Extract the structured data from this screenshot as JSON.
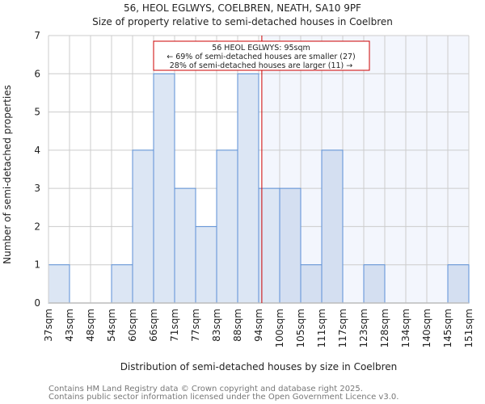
{
  "chart_data": {
    "type": "bar",
    "title": "56, HEOL EGLWYS, COELBREN, NEATH, SA10 9PF",
    "subtitle": "Size of property relative to semi-detached houses in Coelbren",
    "xlabel": "Distribution of semi-detached houses by size in Coelbren",
    "ylabel": "Number of semi-detached properties",
    "ylim": [
      0,
      7
    ],
    "yticks": [
      "0",
      "1",
      "2",
      "3",
      "4",
      "5",
      "6",
      "7"
    ],
    "bin_edges": [
      "37sqm",
      "43sqm",
      "48sqm",
      "54sqm",
      "60sqm",
      "66sqm",
      "71sqm",
      "77sqm",
      "83sqm",
      "88sqm",
      "94sqm",
      "100sqm",
      "105sqm",
      "111sqm",
      "117sqm",
      "123sqm",
      "128sqm",
      "134sqm",
      "140sqm",
      "145sqm",
      "151sqm"
    ],
    "values": [
      1,
      0,
      0,
      1,
      4,
      6,
      3,
      2,
      4,
      6,
      3,
      3,
      1,
      4,
      0,
      1,
      0,
      0,
      0,
      1
    ],
    "marker_value_bins": 10.15,
    "annotation": {
      "line1": "56 HEOL EGLWYS: 95sqm",
      "line2": "← 69% of semi-detached houses are smaller (27)",
      "line3": "28% of semi-detached houses are larger (11) →"
    },
    "grid": true,
    "colors": {
      "bar_left": "#dce6f4",
      "bar_right": "#d4dff1",
      "bar_edge": "#5b8fd6",
      "bg_right": "#f3f6fd",
      "marker": "#cc0000",
      "grid": "#cccccc"
    }
  },
  "footer": {
    "line1": "Contains HM Land Registry data © Crown copyright and database right 2025.",
    "line2": "Contains public sector information licensed under the Open Government Licence v3.0."
  }
}
